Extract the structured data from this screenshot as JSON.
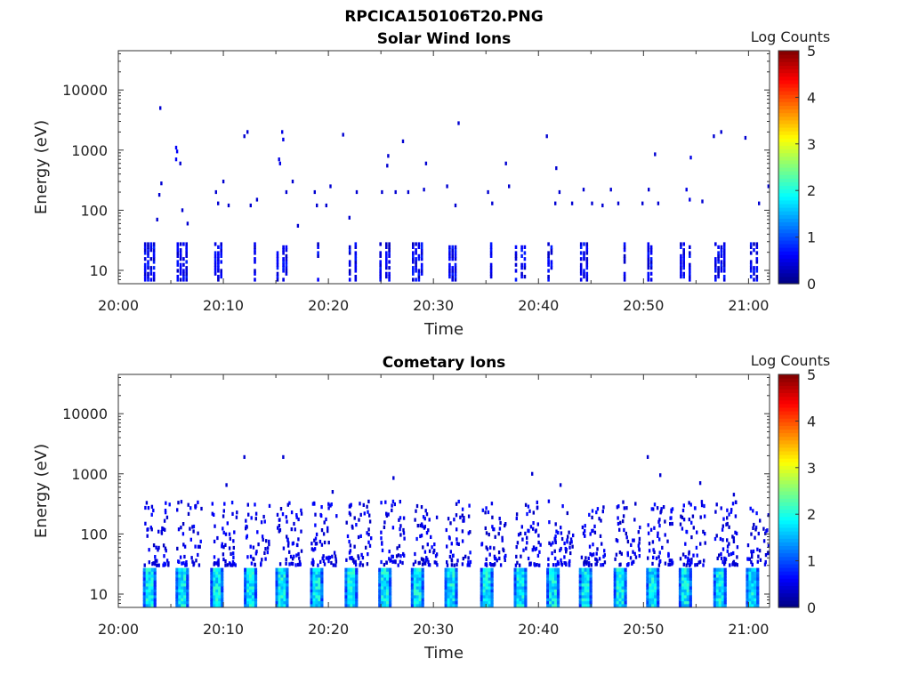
{
  "figure_title": "RPCICA150106T20.PNG",
  "chart_data": [
    {
      "type": "heatmap",
      "title": "Solar Wind Ions",
      "xlabel": "Time",
      "ylabel": "Energy (eV)",
      "colorbar_label": "Log Counts",
      "colorbar_ticks": [
        "0",
        "1",
        "2",
        "3",
        "4",
        "5"
      ],
      "colorbar_range": [
        0,
        5
      ],
      "colormap": "jet",
      "y_scale": "log",
      "ylim": [
        6,
        45000
      ],
      "y_ticks": [
        {
          "v": 10,
          "label": "10"
        },
        {
          "v": 100,
          "label": "100"
        },
        {
          "v": 1000,
          "label": "1000"
        },
        {
          "v": 10000,
          "label": "10000"
        }
      ],
      "x_range_min": [
        0,
        62
      ],
      "x_ticks": [
        {
          "m": 0,
          "label": "20:00"
        },
        {
          "m": 10,
          "label": "20:10"
        },
        {
          "m": 20,
          "label": "20:20"
        },
        {
          "m": 30,
          "label": "20:30"
        },
        {
          "m": 40,
          "label": "20:40"
        },
        {
          "m": 50,
          "label": "20:50"
        },
        {
          "m": 60,
          "label": "21:00"
        }
      ],
      "scan_times_min": [
        2.8,
        5.9,
        9.2,
        12.4,
        15.4,
        18.7,
        22.0,
        25.2,
        28.3,
        31.5,
        34.9,
        38.1,
        41.2,
        44.3,
        47.6,
        50.7,
        53.8,
        57.1,
        60.2
      ],
      "sparse_points": [
        {
          "t": 3.9,
          "e": 5000,
          "v": 0.4
        },
        {
          "t": 4.0,
          "e": 280,
          "v": 0.4
        },
        {
          "t": 3.8,
          "e": 180,
          "v": 0.4
        },
        {
          "t": 3.6,
          "e": 70,
          "v": 0.4
        },
        {
          "t": 5.4,
          "e": 1100,
          "v": 0.6
        },
        {
          "t": 5.5,
          "e": 950,
          "v": 0.6
        },
        {
          "t": 5.4,
          "e": 700,
          "v": 0.6
        },
        {
          "t": 5.8,
          "e": 600,
          "v": 0.4
        },
        {
          "t": 6.0,
          "e": 100,
          "v": 0.4
        },
        {
          "t": 6.5,
          "e": 60,
          "v": 0.4
        },
        {
          "t": 9.2,
          "e": 200,
          "v": 0.4
        },
        {
          "t": 9.4,
          "e": 130,
          "v": 0.4
        },
        {
          "t": 9.9,
          "e": 300,
          "v": 0.4
        },
        {
          "t": 10.4,
          "e": 120,
          "v": 0.4
        },
        {
          "t": 11.9,
          "e": 1700,
          "v": 0.4
        },
        {
          "t": 12.2,
          "e": 2000,
          "v": 0.4
        },
        {
          "t": 12.5,
          "e": 120,
          "v": 0.4
        },
        {
          "t": 13.1,
          "e": 150,
          "v": 0.4
        },
        {
          "t": 15.5,
          "e": 2000,
          "v": 0.5
        },
        {
          "t": 15.6,
          "e": 1500,
          "v": 0.5
        },
        {
          "t": 15.2,
          "e": 700,
          "v": 0.5
        },
        {
          "t": 15.3,
          "e": 600,
          "v": 0.5
        },
        {
          "t": 15.9,
          "e": 200,
          "v": 0.4
        },
        {
          "t": 16.5,
          "e": 300,
          "v": 0.4
        },
        {
          "t": 17.0,
          "e": 55,
          "v": 0.4
        },
        {
          "t": 18.6,
          "e": 200,
          "v": 0.4
        },
        {
          "t": 18.8,
          "e": 120,
          "v": 0.4
        },
        {
          "t": 19.7,
          "e": 120,
          "v": 0.4
        },
        {
          "t": 20.1,
          "e": 250,
          "v": 0.4
        },
        {
          "t": 21.3,
          "e": 1800,
          "v": 0.4
        },
        {
          "t": 21.9,
          "e": 75,
          "v": 0.4
        },
        {
          "t": 22.6,
          "e": 200,
          "v": 0.4
        },
        {
          "t": 25.0,
          "e": 200,
          "v": 0.4
        },
        {
          "t": 25.6,
          "e": 800,
          "v": 0.4
        },
        {
          "t": 25.5,
          "e": 550,
          "v": 0.4
        },
        {
          "t": 26.3,
          "e": 200,
          "v": 0.4
        },
        {
          "t": 27.0,
          "e": 1400,
          "v": 0.4
        },
        {
          "t": 27.5,
          "e": 200,
          "v": 0.4
        },
        {
          "t": 29.2,
          "e": 600,
          "v": 0.4
        },
        {
          "t": 29.0,
          "e": 220,
          "v": 0.4
        },
        {
          "t": 31.2,
          "e": 250,
          "v": 0.4
        },
        {
          "t": 32.3,
          "e": 2800,
          "v": 0.4
        },
        {
          "t": 32.0,
          "e": 120,
          "v": 0.4
        },
        {
          "t": 35.1,
          "e": 200,
          "v": 0.4
        },
        {
          "t": 35.5,
          "e": 130,
          "v": 0.4
        },
        {
          "t": 36.8,
          "e": 600,
          "v": 0.4
        },
        {
          "t": 37.1,
          "e": 250,
          "v": 0.4
        },
        {
          "t": 40.7,
          "e": 1700,
          "v": 0.4
        },
        {
          "t": 41.6,
          "e": 500,
          "v": 0.4
        },
        {
          "t": 41.9,
          "e": 200,
          "v": 0.4
        },
        {
          "t": 41.5,
          "e": 130,
          "v": 0.4
        },
        {
          "t": 43.1,
          "e": 130,
          "v": 0.4
        },
        {
          "t": 44.2,
          "e": 220,
          "v": 0.4
        },
        {
          "t": 45.0,
          "e": 130,
          "v": 0.4
        },
        {
          "t": 46.0,
          "e": 120,
          "v": 0.4
        },
        {
          "t": 46.8,
          "e": 220,
          "v": 0.4
        },
        {
          "t": 47.5,
          "e": 130,
          "v": 0.4
        },
        {
          "t": 49.8,
          "e": 130,
          "v": 0.4
        },
        {
          "t": 50.4,
          "e": 220,
          "v": 0.4
        },
        {
          "t": 51.0,
          "e": 850,
          "v": 0.4
        },
        {
          "t": 51.3,
          "e": 130,
          "v": 0.4
        },
        {
          "t": 54.0,
          "e": 220,
          "v": 0.5
        },
        {
          "t": 54.3,
          "e": 150,
          "v": 0.5
        },
        {
          "t": 54.4,
          "e": 750,
          "v": 0.5
        },
        {
          "t": 55.5,
          "e": 140,
          "v": 0.4
        },
        {
          "t": 56.6,
          "e": 1700,
          "v": 0.4
        },
        {
          "t": 57.3,
          "e": 2000,
          "v": 0.4
        },
        {
          "t": 59.6,
          "e": 1600,
          "v": 0.4
        },
        {
          "t": 60.9,
          "e": 130,
          "v": 0.4
        },
        {
          "t": 61.8,
          "e": 250,
          "v": 0.4
        }
      ]
    },
    {
      "type": "heatmap",
      "title": "Cometary Ions",
      "xlabel": "Time",
      "ylabel": "Energy (eV)",
      "colorbar_label": "Log Counts",
      "colorbar_ticks": [
        "0",
        "1",
        "2",
        "3",
        "4",
        "5"
      ],
      "colorbar_range": [
        0,
        5
      ],
      "colormap": "jet",
      "y_scale": "log",
      "ylim": [
        6,
        45000
      ],
      "y_ticks": [
        {
          "v": 10,
          "label": "10"
        },
        {
          "v": 100,
          "label": "100"
        },
        {
          "v": 1000,
          "label": "1000"
        },
        {
          "v": 10000,
          "label": "10000"
        }
      ],
      "x_range_min": [
        0,
        62
      ],
      "x_ticks": [
        {
          "m": 0,
          "label": "20:00"
        },
        {
          "m": 10,
          "label": "20:10"
        },
        {
          "m": 20,
          "label": "20:20"
        },
        {
          "m": 30,
          "label": "20:30"
        },
        {
          "m": 40,
          "label": "20:40"
        },
        {
          "m": 50,
          "label": "20:50"
        },
        {
          "m": 60,
          "label": "21:00"
        }
      ],
      "scan_times_min": [
        2.8,
        5.9,
        9.2,
        12.4,
        15.4,
        18.7,
        22.0,
        25.2,
        28.3,
        31.5,
        34.9,
        38.1,
        41.2,
        44.3,
        47.6,
        50.7,
        53.8,
        57.1,
        60.2
      ],
      "sparse_points": [
        {
          "t": 11.9,
          "e": 1900,
          "v": 0.4
        },
        {
          "t": 15.6,
          "e": 1900,
          "v": 0.4
        },
        {
          "t": 39.3,
          "e": 1000,
          "v": 0.4
        },
        {
          "t": 42.0,
          "e": 650,
          "v": 0.4
        },
        {
          "t": 50.3,
          "e": 1900,
          "v": 0.4
        },
        {
          "t": 51.5,
          "e": 950,
          "v": 0.4
        },
        {
          "t": 26.1,
          "e": 850,
          "v": 0.4
        },
        {
          "t": 10.2,
          "e": 650,
          "v": 0.4
        },
        {
          "t": 55.3,
          "e": 700,
          "v": 0.4
        },
        {
          "t": 58.5,
          "e": 450,
          "v": 0.4
        },
        {
          "t": 20.3,
          "e": 500,
          "v": 0.4
        }
      ]
    }
  ]
}
